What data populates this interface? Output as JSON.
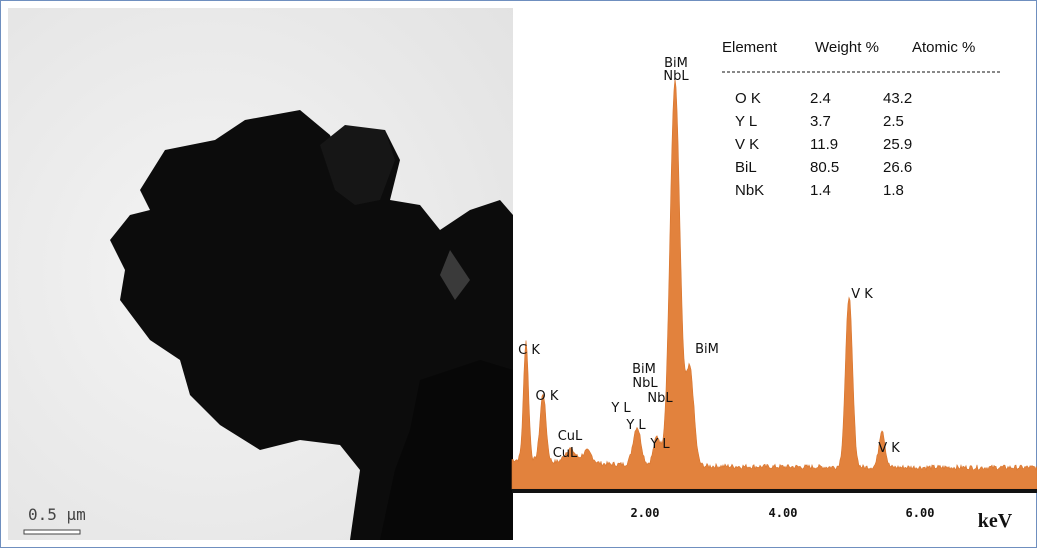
{
  "tem_image": {
    "scale_bar_label": "0.5 µm"
  },
  "spectrum": {
    "peak_labels": [
      "BiM",
      "NbL",
      "C K",
      "O K",
      "CuL",
      "CuL",
      "BiM",
      "NbL",
      "NbL",
      "Y L",
      "Y L",
      "Y L",
      "BiM",
      "V K",
      "V K"
    ],
    "x_ticks": [
      "2.00",
      "4.00",
      "6.00"
    ],
    "x_unit": "keV"
  },
  "table": {
    "columns": [
      "Element",
      "Weight %",
      "Atomic %"
    ],
    "rows": [
      [
        "O K",
        2.4,
        43.2
      ],
      [
        "Y L",
        3.7,
        2.5
      ],
      [
        "V K",
        11.9,
        25.9
      ],
      [
        "BiL",
        80.5,
        26.6
      ],
      [
        "NbK",
        1.4,
        1.8
      ]
    ]
  }
}
